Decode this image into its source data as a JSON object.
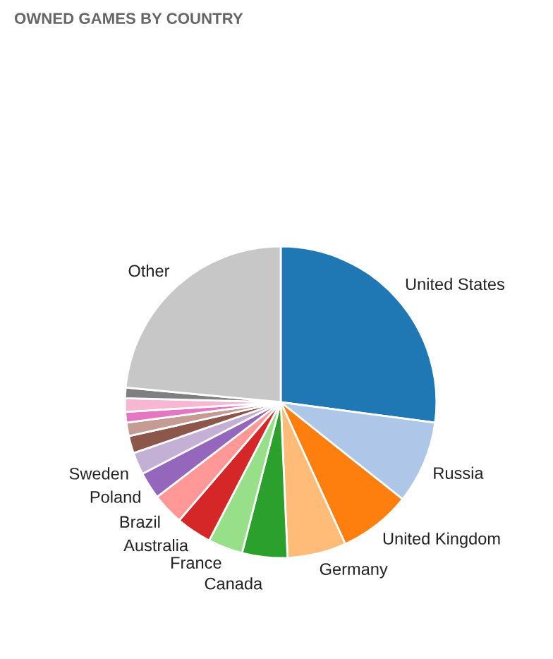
{
  "chart_data": {
    "type": "pie",
    "title": "OWNED GAMES BY COUNTRY",
    "categories": [
      "United States",
      "Russia",
      "United Kingdom",
      "Germany",
      "Canada",
      "France",
      "Australia",
      "Brazil",
      "Poland",
      "Sweden",
      null,
      null,
      null,
      null,
      null,
      "Other"
    ],
    "values": [
      27.1,
      8.6,
      7.5,
      6.1,
      4.7,
      3.6,
      3.7,
      3.3,
      2.8,
      2.3,
      1.8,
      1.4,
      1.1,
      1.4,
      1.1,
      23.5
    ],
    "colors": [
      "#1f77b4",
      "#aec7e8",
      "#ff7f0e",
      "#ffbb78",
      "#2ca02c",
      "#98df8a",
      "#d62728",
      "#ff9896",
      "#9467bd",
      "#c5b0d5",
      "#8c564b",
      "#c49c94",
      "#e377c2",
      "#f7b6d2",
      "#7f7f7f",
      "#c7c7c7"
    ],
    "legend": false
  }
}
